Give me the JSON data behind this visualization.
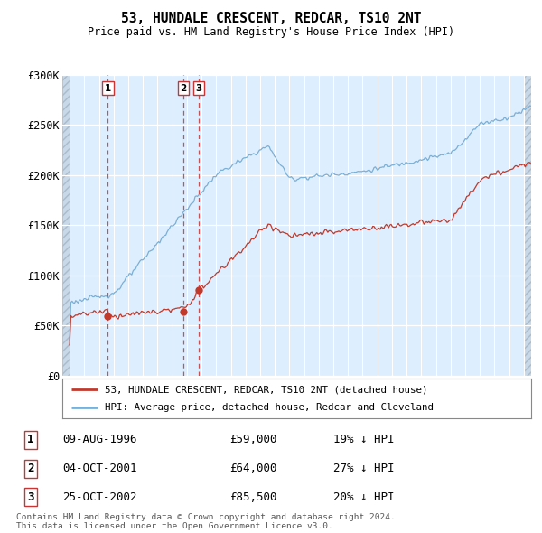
{
  "title": "53, HUNDALE CRESCENT, REDCAR, TS10 2NT",
  "subtitle": "Price paid vs. HM Land Registry's House Price Index (HPI)",
  "legend_line1": "53, HUNDALE CRESCENT, REDCAR, TS10 2NT (detached house)",
  "legend_line2": "HPI: Average price, detached house, Redcar and Cleveland",
  "footer": "Contains HM Land Registry data © Crown copyright and database right 2024.\nThis data is licensed under the Open Government Licence v3.0.",
  "transactions": [
    {
      "num": 1,
      "date": "09-AUG-1996",
      "year": 1996.6,
      "price": 59000,
      "label": "19% ↓ HPI"
    },
    {
      "num": 2,
      "date": "04-OCT-2001",
      "year": 2001.75,
      "price": 64000,
      "label": "27% ↓ HPI"
    },
    {
      "num": 3,
      "date": "25-OCT-2002",
      "year": 2002.8,
      "price": 85500,
      "label": "20% ↓ HPI"
    }
  ],
  "hpi_color": "#7bafd4",
  "price_color": "#c0392b",
  "dot_color": "#c0392b",
  "ylim": [
    0,
    300000
  ],
  "xlim_start": 1993.5,
  "xlim_end": 2025.5,
  "yticks": [
    0,
    50000,
    100000,
    150000,
    200000,
    250000,
    300000
  ],
  "ytick_labels": [
    "£0",
    "£50K",
    "£100K",
    "£150K",
    "£200K",
    "£250K",
    "£300K"
  ],
  "xticks": [
    1994,
    1995,
    1996,
    1997,
    1998,
    1999,
    2000,
    2001,
    2002,
    2003,
    2004,
    2005,
    2006,
    2007,
    2008,
    2009,
    2010,
    2011,
    2012,
    2013,
    2014,
    2015,
    2016,
    2017,
    2018,
    2019,
    2020,
    2021,
    2022,
    2023,
    2024,
    2025
  ],
  "bg_color": "#ddeeff",
  "hatch_bg": "#c8d8e8"
}
